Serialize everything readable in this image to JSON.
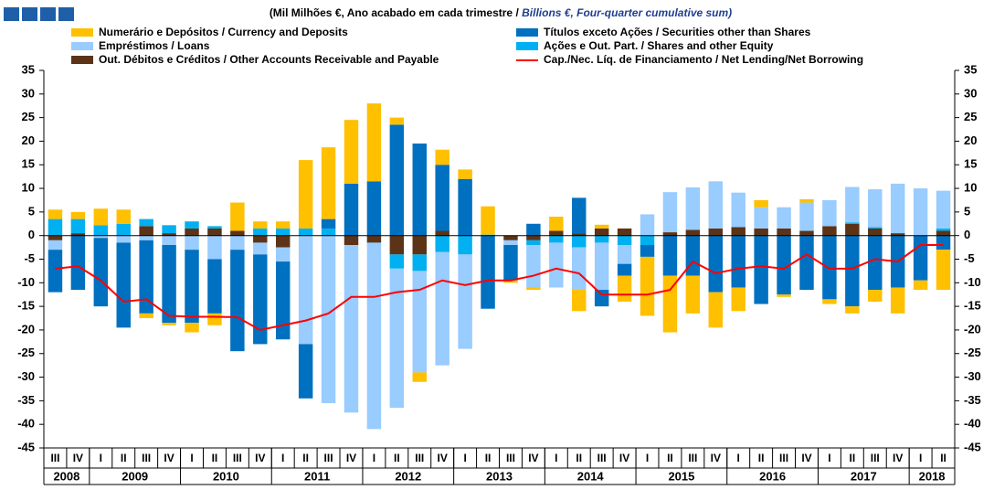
{
  "chart_data": {
    "type": "bar",
    "title": "(Mil Milhões €, Ano acabado em cada trimestre  /",
    "title_en": "Billions €, Four-quarter cumulative sum)",
    "categories": [
      "III",
      "IV",
      "I",
      "II",
      "III",
      "IV",
      "I",
      "II",
      "III",
      "IV",
      "I",
      "II",
      "III",
      "IV",
      "I",
      "II",
      "III",
      "IV",
      "I",
      "II",
      "III",
      "IV",
      "I",
      "II",
      "III",
      "IV",
      "I",
      "II",
      "III",
      "IV",
      "I",
      "II",
      "III",
      "IV",
      "I",
      "II",
      "III",
      "IV",
      "I",
      "II"
    ],
    "years": [
      "2008",
      "2009",
      "2010",
      "2011",
      "2012",
      "2013",
      "2014",
      "2015",
      "2016",
      "2017",
      "2018"
    ],
    "ylim": [
      -45,
      35
    ],
    "yticks": [
      -45,
      -40,
      -35,
      -30,
      -25,
      -20,
      -15,
      -10,
      -5,
      0,
      5,
      10,
      15,
      20,
      25,
      30,
      35
    ],
    "series": [
      {
        "name": "Numerário e Depósitos / Currency and Deposits",
        "color": "#FFC000",
        "values": [
          2,
          1.5,
          3.5,
          3,
          -1,
          -0.5,
          -2,
          -2.5,
          6,
          1.5,
          1.5,
          14.5,
          15.2,
          13.5,
          16.5,
          1.5,
          -2,
          3.2,
          2,
          6,
          -0.5,
          -0.5,
          3,
          -4.5,
          0.8,
          -5.5,
          -12.5,
          -12,
          -8,
          -7.5,
          -5,
          1.5,
          -0.5,
          0.7,
          -1,
          -1.5,
          -2.5,
          -5.5,
          -2,
          -8.5
        ]
      },
      {
        "name": "Títulos exceto Ações / Securities other than Shares",
        "color": "#0070C0",
        "values": [
          -9,
          -11.5,
          -14.5,
          -18,
          -15.5,
          -16.5,
          -15.5,
          -11.5,
          -21.5,
          -19,
          -16.5,
          -11.5,
          2,
          11,
          11.5,
          23.5,
          19.5,
          14,
          12,
          -15.5,
          -7.5,
          2.5,
          0,
          7.5,
          -3.5,
          -2.5,
          -2.5,
          -8.5,
          -8.5,
          -12,
          -11,
          -14.5,
          -12.5,
          -11.5,
          -13.5,
          -15,
          -11.5,
          -11,
          -9.5,
          -3
        ]
      },
      {
        "name": "Empréstimos / Loans",
        "color": "#99CCFF",
        "values": [
          -2,
          0,
          -0.5,
          -1.5,
          -1,
          -2,
          -3,
          -5,
          -3,
          -2.5,
          -3,
          -23,
          -35.5,
          -35.5,
          -39.5,
          -29.5,
          -21.5,
          -24,
          -20,
          0,
          -1,
          -9,
          -9.5,
          -9,
          -10,
          -4,
          4.5,
          8.5,
          9,
          10,
          7.3,
          4.5,
          4.5,
          6,
          5.5,
          7.5,
          8,
          10.5,
          10,
          8
        ]
      },
      {
        "name": "Ações e Out. Part. / Shares and other Equity",
        "color": "#00B0F0",
        "values": [
          3.5,
          3,
          2.2,
          2.5,
          1.5,
          1.7,
          1.5,
          0.5,
          0,
          1.5,
          1.5,
          1.5,
          1.5,
          0,
          0,
          -3,
          -3.5,
          -3.5,
          -4,
          0.2,
          0,
          -1,
          -1.5,
          -2.5,
          -1.5,
          -2,
          -2,
          0,
          0,
          0,
          0,
          0,
          0,
          0,
          0,
          0.3,
          0.3,
          0,
          0,
          0.5
        ]
      },
      {
        "name": "Out. Débitos e Créditos / Other Accounts Receivable and Payable",
        "color": "#5C3317",
        "values": [
          -1,
          0.5,
          0,
          0,
          2,
          0.5,
          1.5,
          1.5,
          1,
          -1.5,
          -2.5,
          0,
          0,
          -2,
          -1.5,
          -4,
          -4,
          1,
          0,
          0,
          -1,
          -1,
          1,
          0.5,
          1.5,
          1.5,
          0,
          0.7,
          1.2,
          1.5,
          1.8,
          1.5,
          1.5,
          1,
          2,
          2.5,
          1.5,
          0.5,
          0,
          1
        ]
      }
    ],
    "line": {
      "name": "Cap./Nec. Líq. de Financiamento / Net Lending/Net Borrowing",
      "color": "#FF0000",
      "values": [
        -7,
        -6.5,
        -9.5,
        -14,
        -13.5,
        -17,
        -17.2,
        -17.2,
        -17.3,
        -20,
        -19,
        -18,
        -16.5,
        -13,
        -13,
        -12,
        -11.5,
        -9.5,
        -10.5,
        -9.5,
        -9.5,
        -8.5,
        -7,
        -8,
        -12.5,
        -12.5,
        -12.5,
        -11.5,
        -5.5,
        -8,
        -7,
        -6.5,
        -7,
        -4,
        -7,
        -7,
        -5,
        -5.5,
        -2,
        -2
      ]
    }
  }
}
